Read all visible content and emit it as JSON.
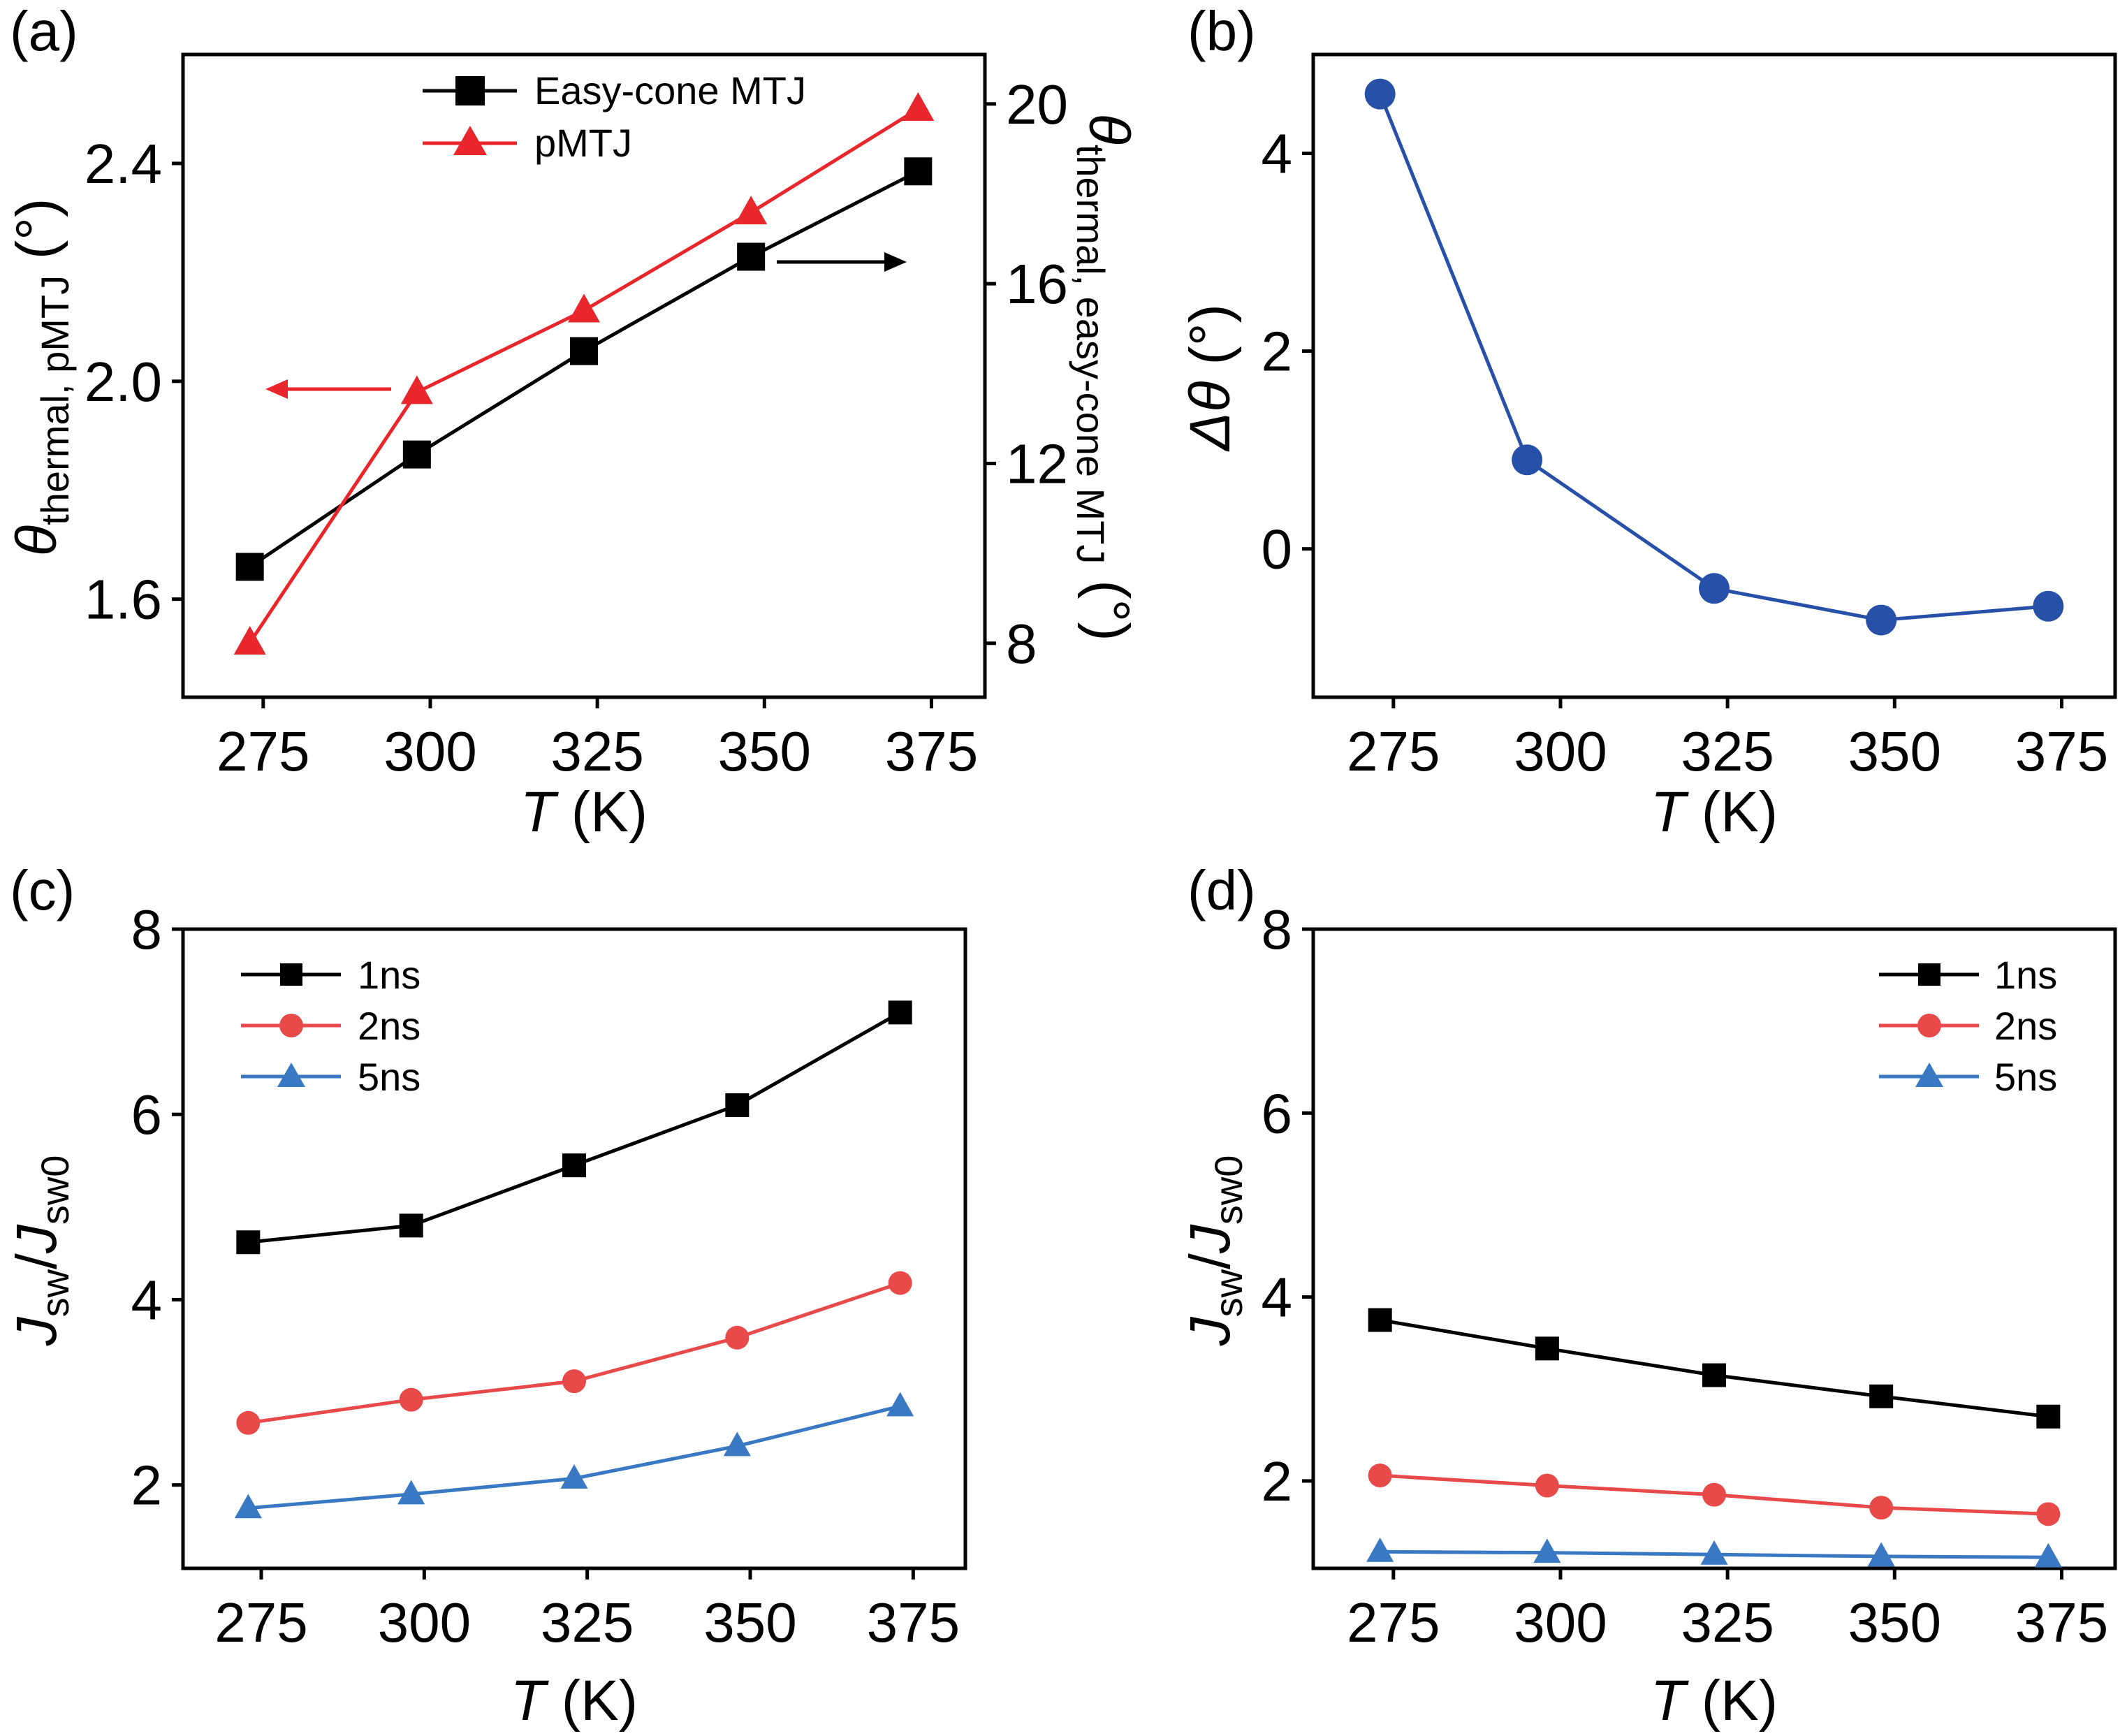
{
  "chart_data": [
    {
      "panel": "(a)",
      "type": "line",
      "x": [
        273,
        298,
        323,
        348,
        373
      ],
      "xlabel_var": "T",
      "xlabel_unit": " (K)",
      "xlim": [
        263,
        383
      ],
      "xticks": [
        275,
        300,
        325,
        350,
        375
      ],
      "ylabel_main": "θ",
      "ylabel_sub": "thermal, pMTJ",
      "ylabel_unit": " (°)",
      "ylim": [
        1.42,
        2.6
      ],
      "yticks": [
        "1.6",
        "2.0",
        "2.4"
      ],
      "y2label_main": "θ",
      "y2label_sub": "thermal, easy-cone MTJ",
      "y2label_unit": " (°)",
      "y2lim": [
        6.8,
        21.1
      ],
      "y2ticks": [
        "8",
        "12",
        "16",
        "20"
      ],
      "legend_position": "top-center",
      "series": [
        {
          "name": "Easy-cone MTJ",
          "axis": "right",
          "color": "#000000",
          "marker": "square",
          "values": [
            9.7,
            12.2,
            14.5,
            16.6,
            18.5
          ]
        },
        {
          "name": "pMTJ",
          "axis": "left",
          "color": "#e8262b",
          "marker": "triangle",
          "values": [
            1.52,
            1.98,
            2.13,
            2.31,
            2.5
          ]
        }
      ]
    },
    {
      "panel": "(b)",
      "type": "line",
      "x": [
        273,
        295,
        323,
        348,
        373
      ],
      "xlabel_var": "T",
      "xlabel_unit": " (K)",
      "xlim": [
        263,
        383
      ],
      "xticks": [
        275,
        300,
        325,
        350,
        375
      ],
      "ylabel_main": "Δθ",
      "ylabel_unit": " (°)",
      "ylim": [
        -1.5,
        5.0
      ],
      "yticks": [
        "0",
        "2",
        "4"
      ],
      "series": [
        {
          "name": "Δθ",
          "color": "#2750a8",
          "marker": "circle",
          "values": [
            4.6,
            0.9,
            -0.4,
            -0.72,
            -0.58
          ]
        }
      ]
    },
    {
      "panel": "(c)",
      "type": "line",
      "x": [
        273,
        298,
        323,
        348,
        373
      ],
      "xlabel_var": "T",
      "xlabel_unit": " (K)",
      "xlim": [
        263,
        383
      ],
      "xticks": [
        275,
        300,
        325,
        350,
        375
      ],
      "ylabel_a": "J",
      "ylabel_a_sub": "sw",
      "ylabel_b": "J",
      "ylabel_b_sub": "sw0",
      "ylim": [
        1.1,
        8.0
      ],
      "yticks": [
        "2",
        "4",
        "6",
        "8"
      ],
      "legend_position": "top-left",
      "series": [
        {
          "name": "1ns",
          "color": "#000000",
          "marker": "square",
          "values": [
            4.62,
            4.8,
            5.45,
            6.1,
            7.1
          ]
        },
        {
          "name": "2ns",
          "color": "#e84a4a",
          "marker": "circle",
          "values": [
            2.67,
            2.92,
            3.12,
            3.59,
            4.18
          ]
        },
        {
          "name": "5ns",
          "color": "#3978c3",
          "marker": "triangle",
          "values": [
            1.75,
            1.9,
            2.07,
            2.42,
            2.85
          ]
        }
      ]
    },
    {
      "panel": "(d)",
      "type": "line",
      "x": [
        273,
        298,
        323,
        348,
        373
      ],
      "xlabel_var": "T",
      "xlabel_unit": " (K)",
      "xlim": [
        263,
        383
      ],
      "xticks": [
        275,
        300,
        325,
        350,
        375
      ],
      "ylabel_a": "J",
      "ylabel_a_sub": "sw",
      "ylabel_b": "J",
      "ylabel_b_sub": "sw0",
      "ylim": [
        1.05,
        8.0
      ],
      "yticks": [
        "2",
        "4",
        "6",
        "8"
      ],
      "legend_position": "top-right",
      "series": [
        {
          "name": "1ns",
          "color": "#000000",
          "marker": "square",
          "values": [
            3.75,
            3.44,
            3.15,
            2.92,
            2.7
          ]
        },
        {
          "name": "2ns",
          "color": "#e84a4a",
          "marker": "circle",
          "values": [
            2.06,
            1.95,
            1.85,
            1.71,
            1.64
          ]
        },
        {
          "name": "5ns",
          "color": "#3978c3",
          "marker": "triangle",
          "values": [
            1.23,
            1.22,
            1.2,
            1.18,
            1.17
          ]
        }
      ]
    }
  ]
}
